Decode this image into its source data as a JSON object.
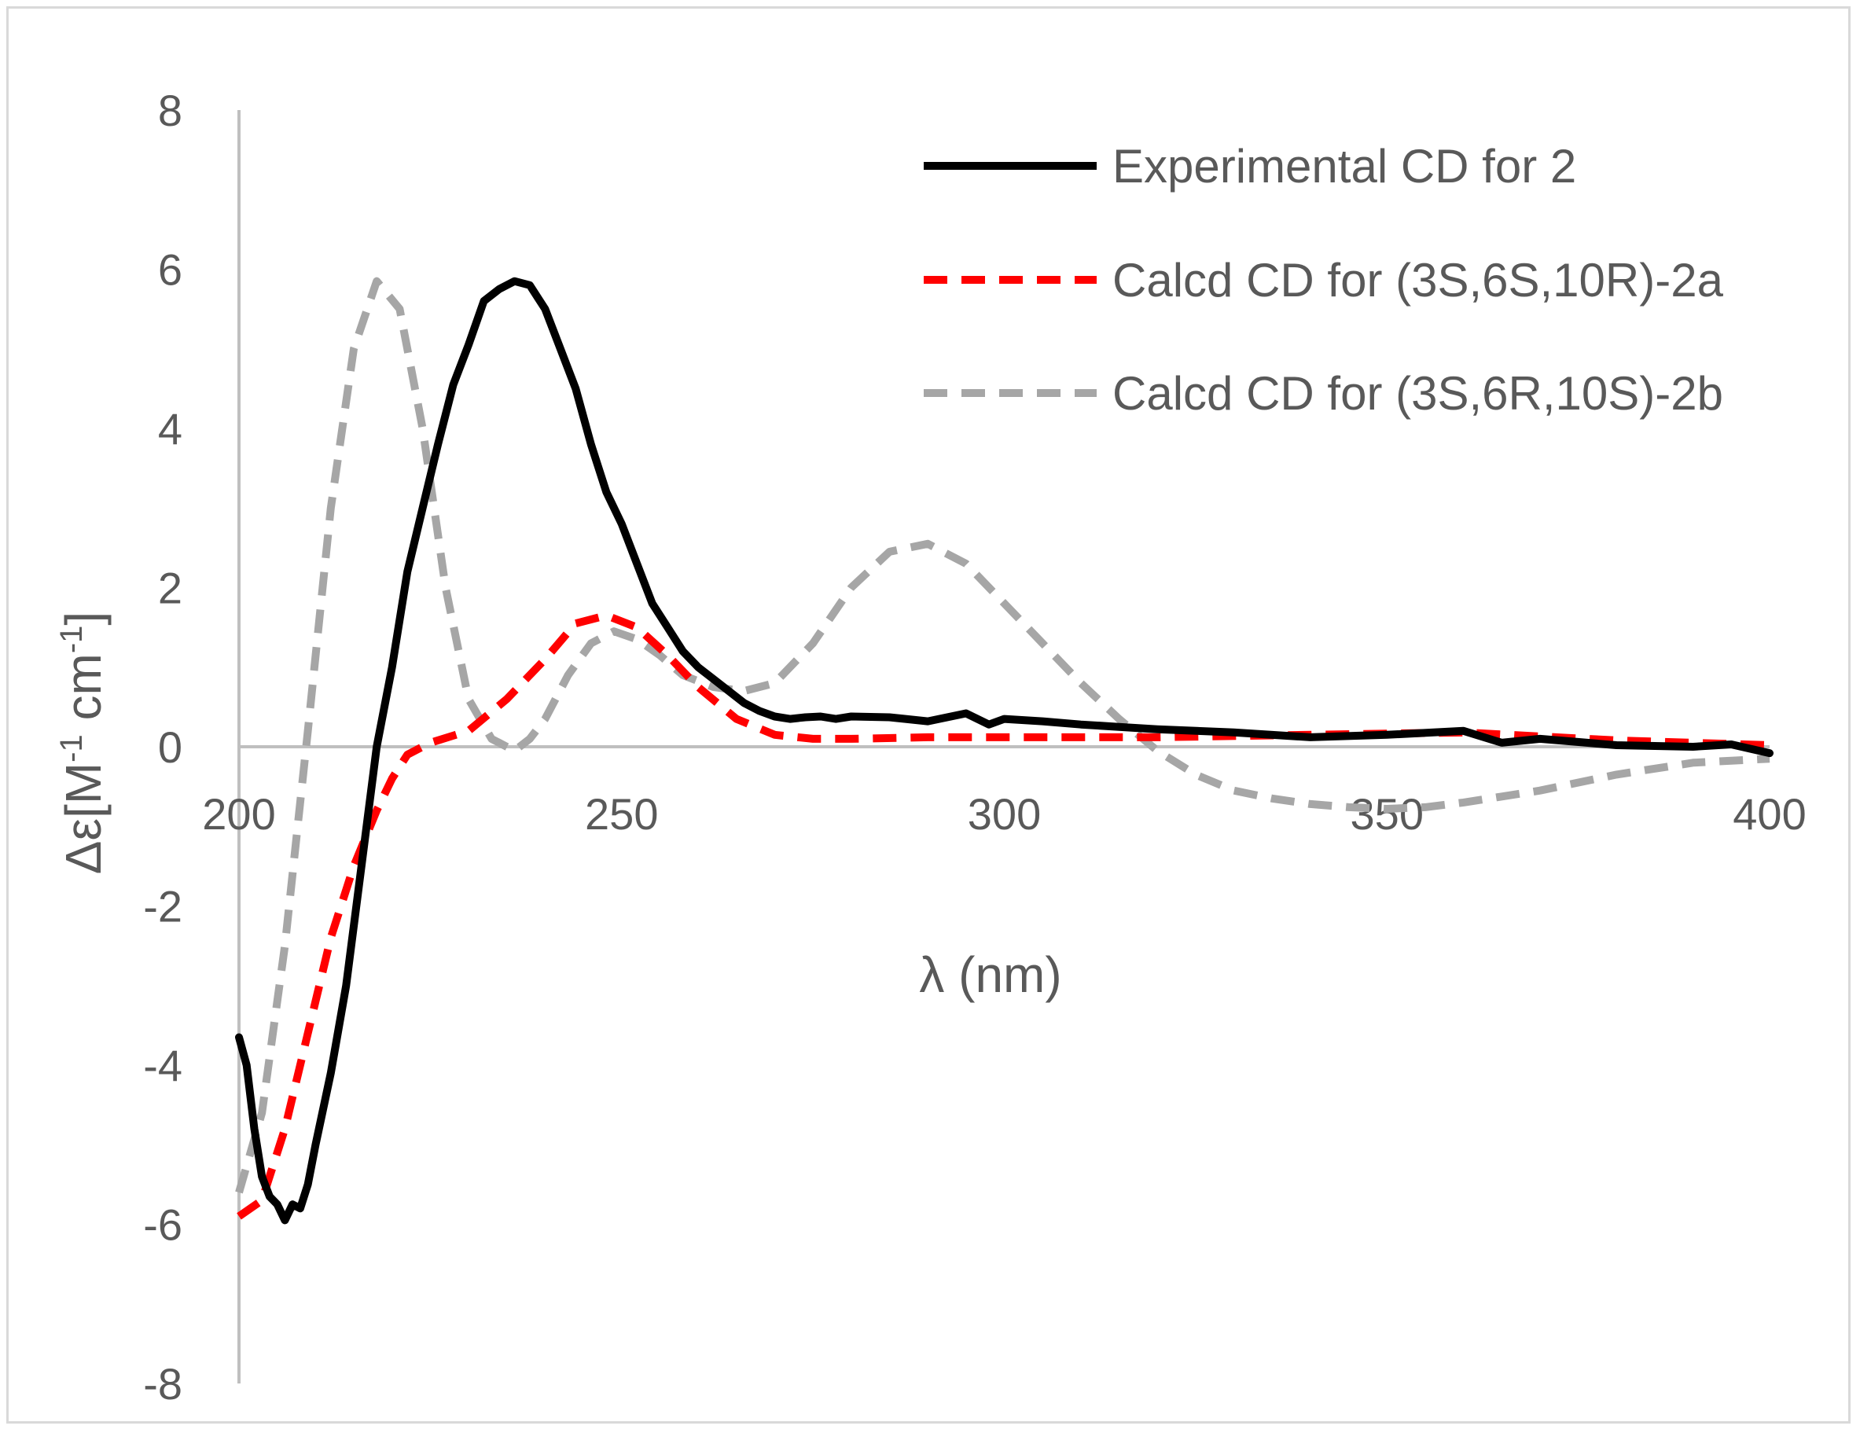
{
  "chart_data": {
    "type": "line",
    "title": "",
    "xlabel": "λ (nm)",
    "ylabel": "Δε[M",
    "ylabel_sup1": "-1",
    "ylabel_mid": " cm",
    "ylabel_sup2": "-1",
    "ylabel_end": "]",
    "xlim": [
      200,
      400
    ],
    "ylim": [
      -8,
      8
    ],
    "xticks": [
      200,
      250,
      300,
      350,
      400
    ],
    "xtick_labels": [
      "200",
      "250",
      "300",
      "350",
      "400"
    ],
    "yticks": [
      -8,
      -6,
      -4,
      -2,
      0,
      2,
      4,
      6,
      8
    ],
    "ytick_labels": [
      "-8",
      "-6",
      "-4",
      "-2",
      "0",
      "2",
      "4",
      "6",
      "8"
    ],
    "grid": false,
    "legend_position": "top-right",
    "series": [
      {
        "name": "Experimental CD for 2",
        "color": "#000000",
        "dash": "solid",
        "x": [
          200,
          201,
          202,
          203,
          204,
          205,
          206,
          207,
          208,
          209,
          210,
          212,
          214,
          216,
          218,
          220,
          222,
          224,
          226,
          228,
          230,
          232,
          234,
          236,
          238,
          240,
          242,
          244,
          246,
          248,
          250,
          252,
          254,
          256,
          258,
          260,
          262,
          264,
          266,
          268,
          270,
          272,
          274,
          276,
          278,
          280,
          285,
          290,
          295,
          298,
          300,
          305,
          310,
          315,
          320,
          330,
          340,
          350,
          360,
          365,
          370,
          380,
          390,
          395,
          400
        ],
        "y": [
          -3.65,
          -4.0,
          -4.8,
          -5.4,
          -5.65,
          -5.75,
          -5.95,
          -5.75,
          -5.8,
          -5.5,
          -5.0,
          -4.1,
          -3.0,
          -1.5,
          0.0,
          1.0,
          2.2,
          3.0,
          3.8,
          4.55,
          5.05,
          5.6,
          5.75,
          5.85,
          5.8,
          5.5,
          5.0,
          4.5,
          3.8,
          3.2,
          2.8,
          2.3,
          1.8,
          1.5,
          1.2,
          1.0,
          0.85,
          0.7,
          0.55,
          0.45,
          0.38,
          0.35,
          0.37,
          0.38,
          0.35,
          0.38,
          0.37,
          0.32,
          0.42,
          0.28,
          0.35,
          0.32,
          0.28,
          0.25,
          0.22,
          0.18,
          0.12,
          0.15,
          0.2,
          0.05,
          0.1,
          0.02,
          0.0,
          0.03,
          -0.08
        ]
      },
      {
        "name": "Calcd CD for (3S,6S,10R)-2a",
        "color": "#ff0000",
        "dash": "dashed",
        "x": [
          200,
          203,
          206,
          209,
          212,
          215,
          218,
          220,
          222,
          225,
          230,
          235,
          240,
          244,
          248,
          252,
          256,
          260,
          265,
          270,
          275,
          280,
          290,
          300,
          320,
          340,
          360,
          380,
          400
        ],
        "y": [
          -5.9,
          -5.7,
          -4.8,
          -3.6,
          -2.4,
          -1.5,
          -0.8,
          -0.4,
          -0.1,
          0.05,
          0.2,
          0.6,
          1.1,
          1.55,
          1.65,
          1.5,
          1.15,
          0.75,
          0.35,
          0.15,
          0.1,
          0.1,
          0.12,
          0.12,
          0.12,
          0.15,
          0.18,
          0.08,
          0.02
        ]
      },
      {
        "name": "Calcd CD for (3S,6R,10S)-2b",
        "color": "#a6a6a6",
        "dash": "dashed",
        "x": [
          200,
          203,
          206,
          209,
          212,
          215,
          218,
          221,
          224,
          227,
          230,
          233,
          236,
          238,
          240,
          243,
          246,
          249,
          252,
          255,
          258,
          262,
          266,
          270,
          275,
          280,
          285,
          290,
          295,
          300,
          305,
          310,
          315,
          320,
          325,
          330,
          335,
          340,
          345,
          350,
          355,
          360,
          370,
          380,
          390,
          400
        ],
        "y": [
          -5.6,
          -4.6,
          -2.5,
          0.2,
          3.0,
          5.0,
          5.85,
          5.5,
          4.0,
          2.0,
          0.6,
          0.1,
          -0.05,
          0.1,
          0.35,
          0.9,
          1.3,
          1.45,
          1.35,
          1.15,
          0.9,
          0.75,
          0.7,
          0.8,
          1.3,
          2.0,
          2.45,
          2.55,
          2.3,
          1.8,
          1.3,
          0.8,
          0.35,
          -0.05,
          -0.35,
          -0.55,
          -0.65,
          -0.72,
          -0.76,
          -0.78,
          -0.76,
          -0.7,
          -0.55,
          -0.35,
          -0.2,
          -0.15
        ]
      }
    ]
  }
}
